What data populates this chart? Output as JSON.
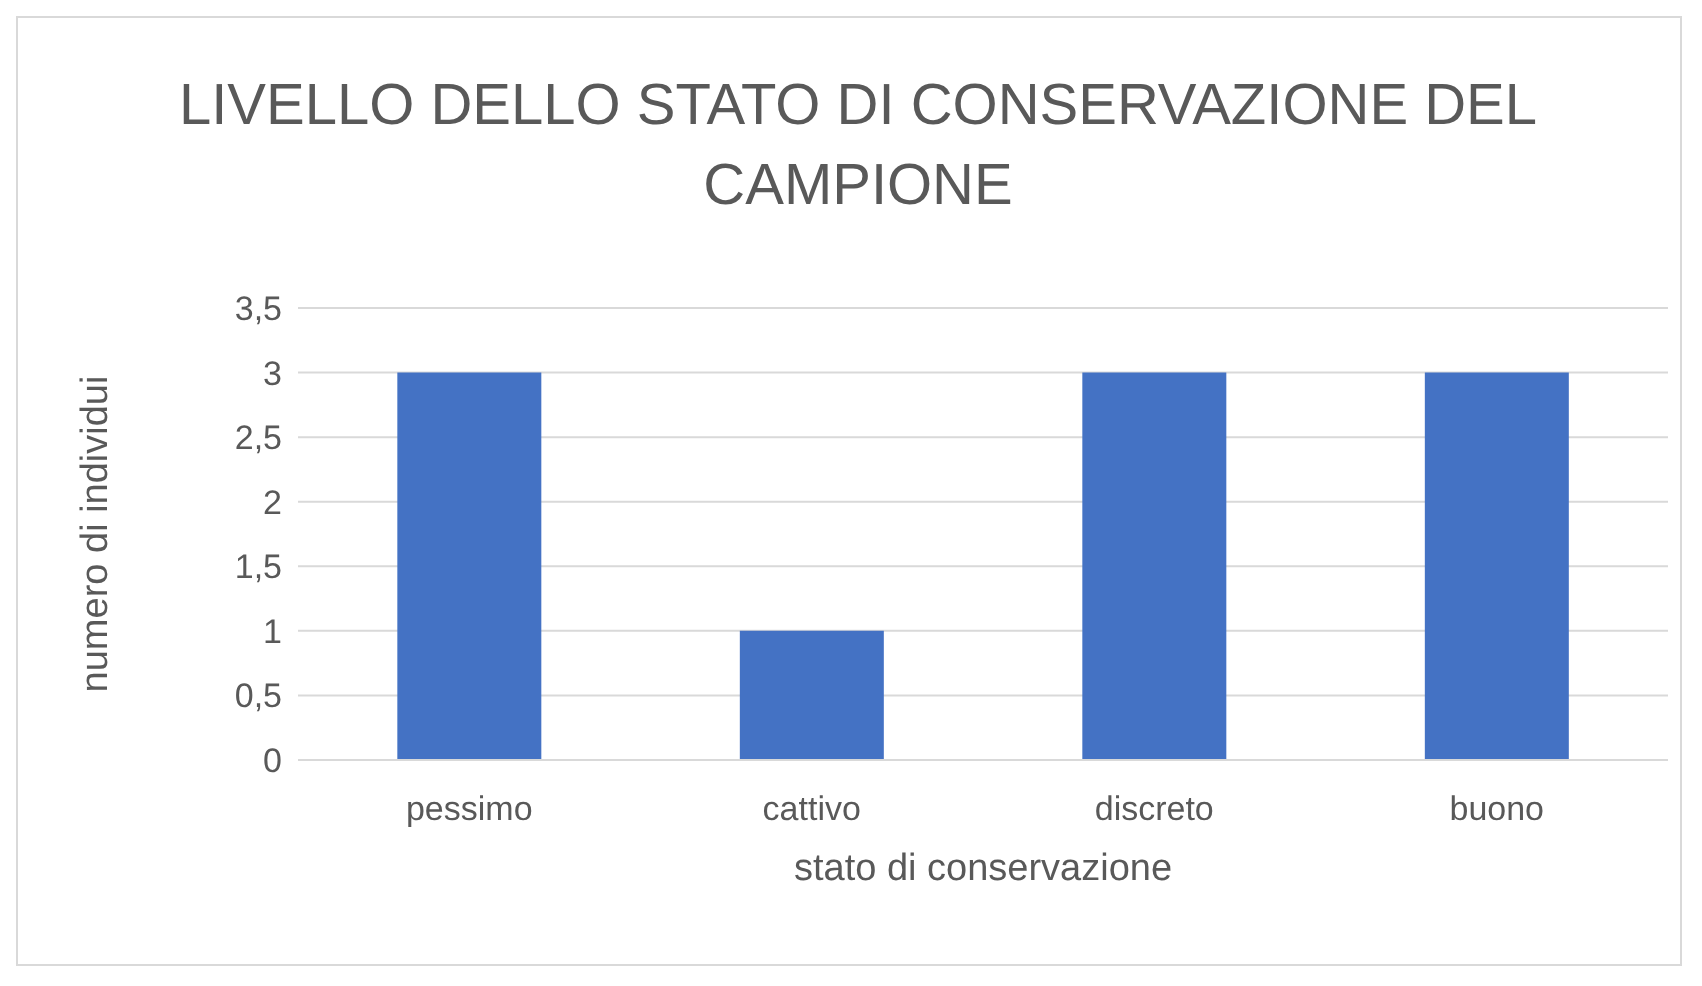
{
  "chart_data": {
    "type": "bar",
    "title": "LIVELLO DELLO STATO DI CONSERVAZIONE DEL CAMPIONE",
    "xlabel": "stato di conservazione",
    "ylabel": "numero di individui",
    "categories": [
      "pessimo",
      "cattivo",
      "discreto",
      "buono"
    ],
    "values": [
      3,
      1,
      3,
      3
    ],
    "color": "#4472c4",
    "ylim": [
      0,
      3.5
    ],
    "yticks": [
      0,
      {
        "value": 0.5,
        "label": "0,5"
      },
      1,
      {
        "value": 1.5,
        "label": "1,5"
      },
      2,
      {
        "value": 2.5,
        "label": "2,5"
      },
      3,
      {
        "value": 3.5,
        "label": "3,5"
      }
    ],
    "grid": "y",
    "legend": false
  }
}
